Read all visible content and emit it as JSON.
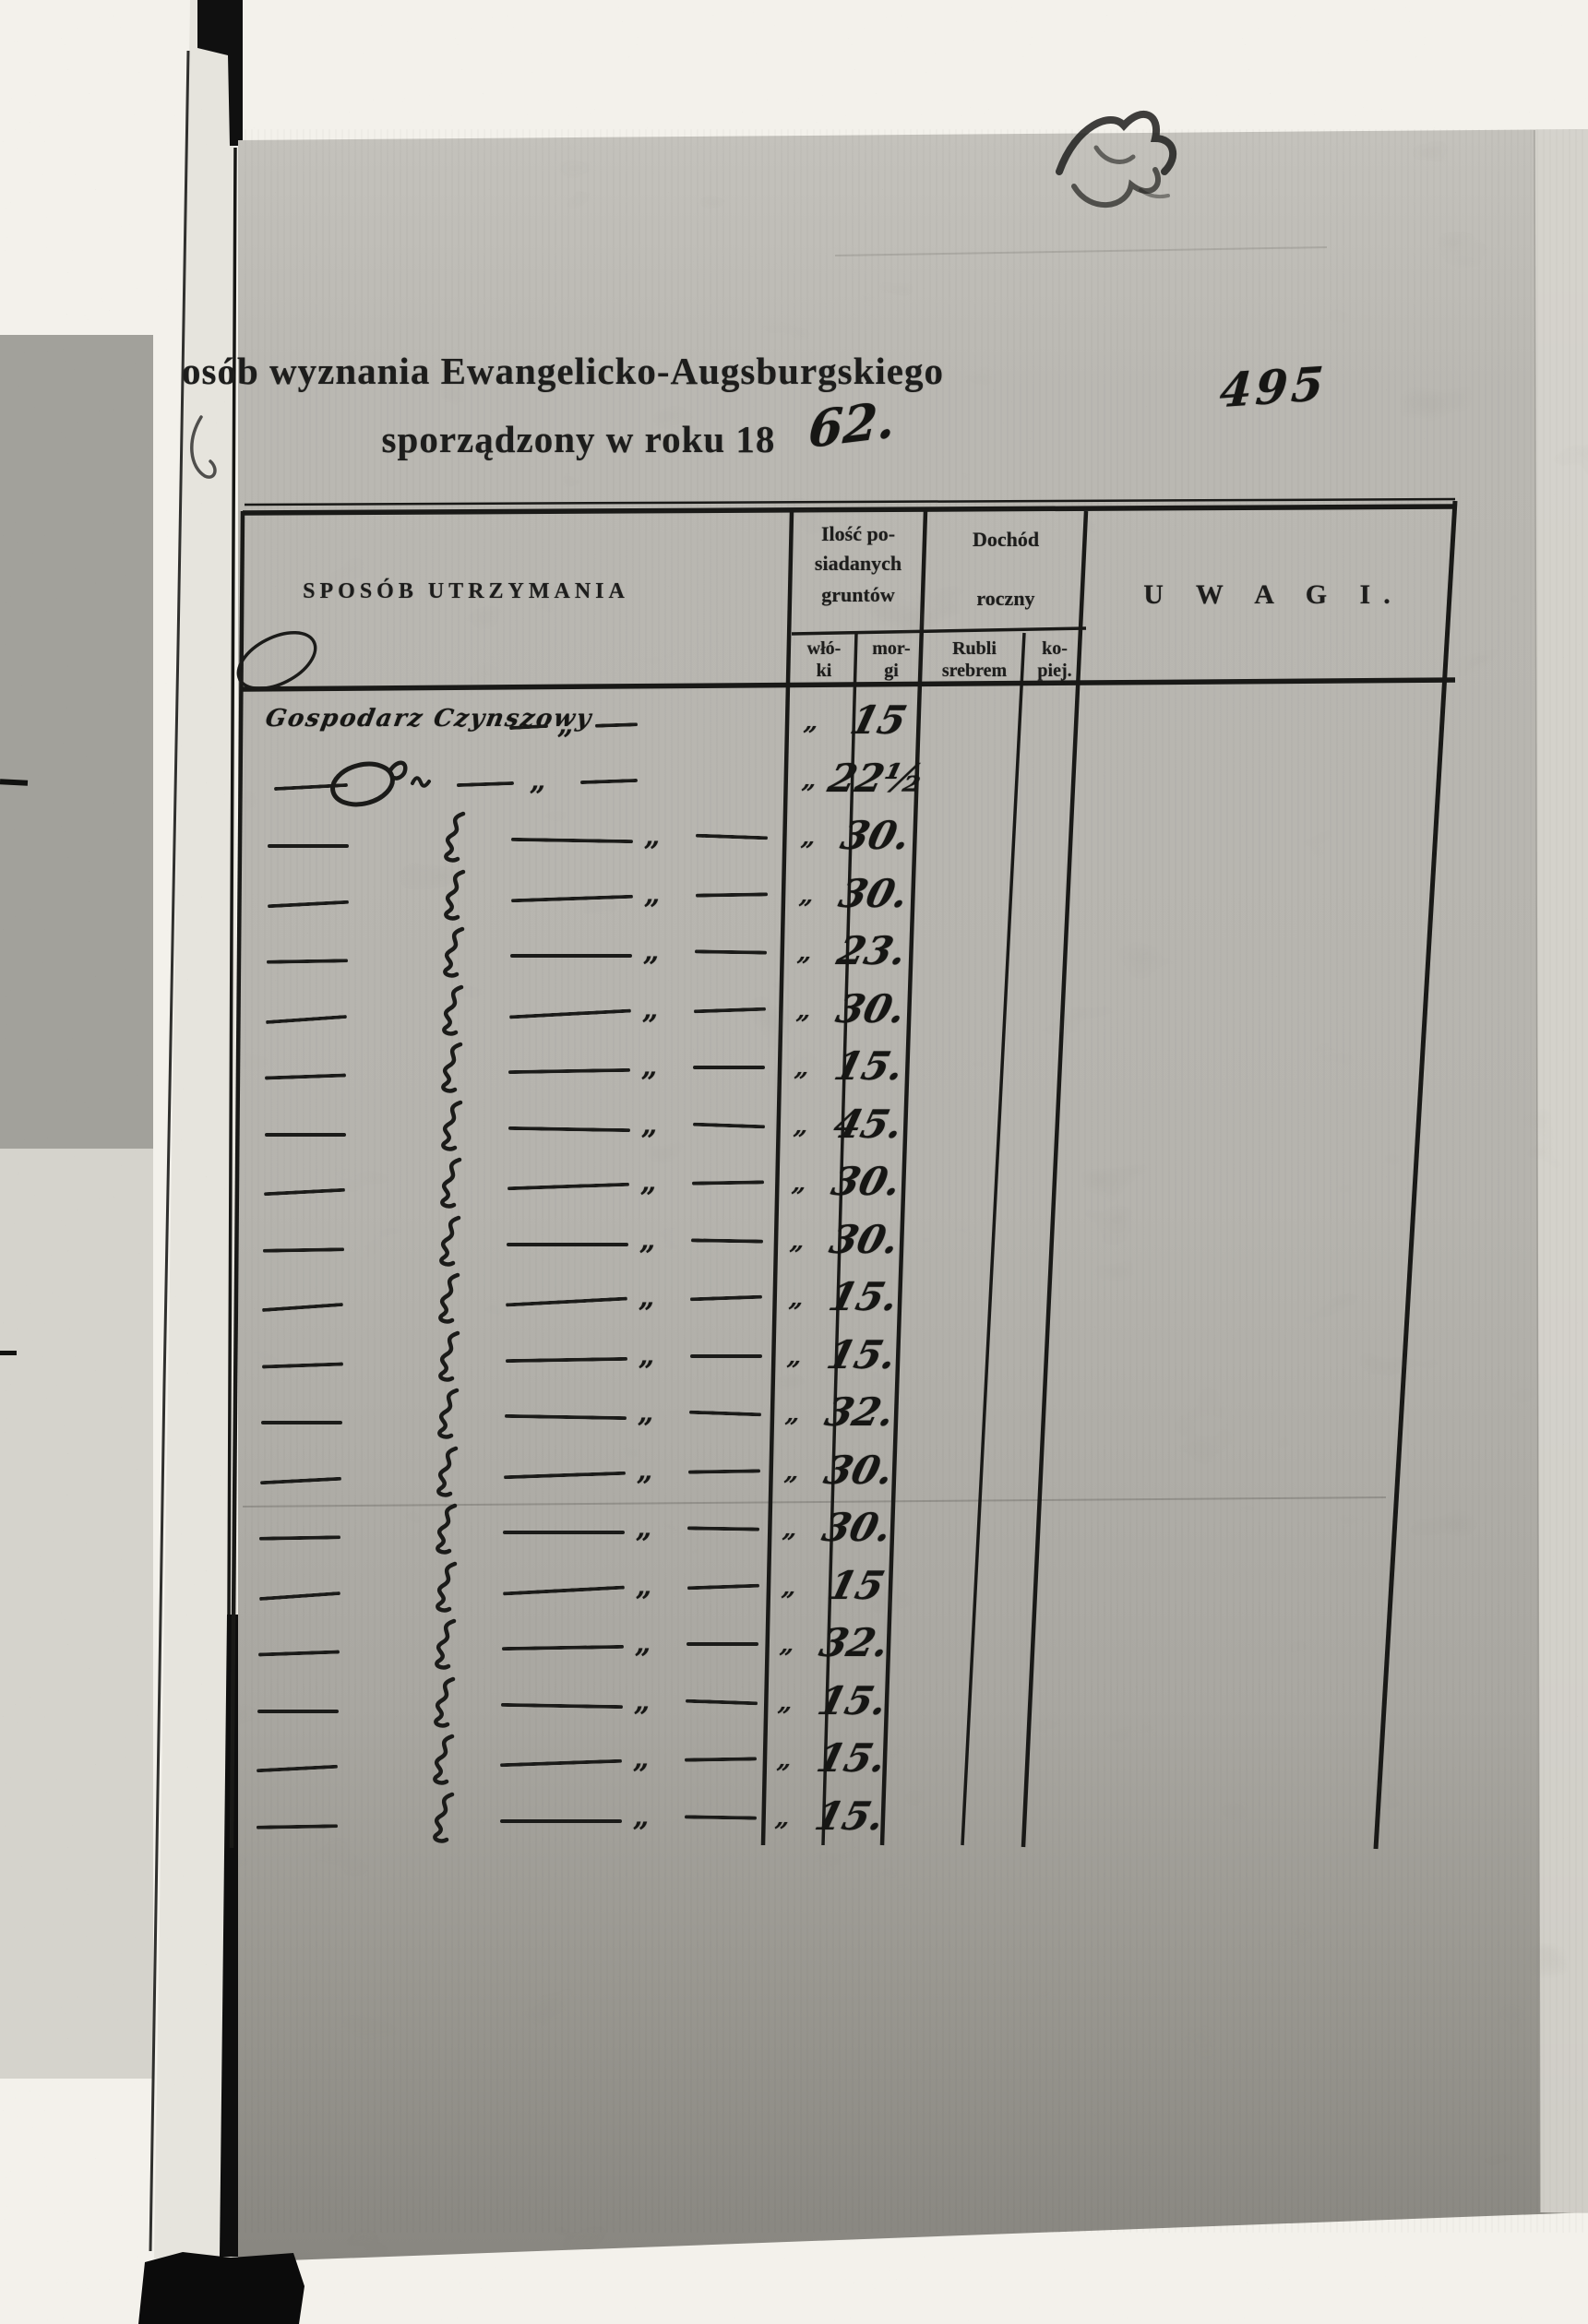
{
  "colors": {
    "ink": "#1a1a19",
    "paper": "#bcbab4",
    "background": "#f3f1eb",
    "handwriting": "#161614"
  },
  "stamp_number": "495",
  "title": {
    "line1": "osób wyznania Ewangelicko-Augsburgskiego",
    "line2_printed": "sporządzony w roku 18",
    "year_handwritten": "62."
  },
  "table": {
    "col_sposob": "SPOSÓB UTRZYMANIA",
    "col_grunty": {
      "line1": "Ilość po-",
      "line2": "siadanych",
      "line3": "gruntów"
    },
    "col_dochod": {
      "line1": "Dochód",
      "line2": "roczny"
    },
    "sub_wloki": {
      "line1": "włó-",
      "line2": "ki"
    },
    "sub_morgi": {
      "line1": "mor-",
      "line2": "gi"
    },
    "sub_rubli": {
      "line1": "Rubli",
      "line2": "srebrem"
    },
    "sub_kopiejki": {
      "line1": "ko-",
      "line2": "piej."
    },
    "col_uwagi": "U W A G I.",
    "ditto_mark": "„",
    "rows": [
      {
        "sposob": "Gospodarz Czynszowy",
        "kind": "text",
        "wloki": "„",
        "morgi": "15",
        "rubli": "",
        "kopiejki": "",
        "uwagi": ""
      },
      {
        "sposob": "Do",
        "kind": "ditto-large",
        "wloki": "„",
        "morgi": "22½",
        "rubli": "",
        "kopiejki": "",
        "uwagi": ""
      },
      {
        "sposob": "do",
        "kind": "ditto",
        "wloki": "„",
        "morgi": "30.",
        "rubli": "",
        "kopiejki": "",
        "uwagi": ""
      },
      {
        "sposob": "do",
        "kind": "ditto",
        "wloki": "„",
        "morgi": "30.",
        "rubli": "",
        "kopiejki": "",
        "uwagi": ""
      },
      {
        "sposob": "do",
        "kind": "ditto",
        "wloki": "„",
        "morgi": "23.",
        "rubli": "",
        "kopiejki": "",
        "uwagi": ""
      },
      {
        "sposob": "do",
        "kind": "ditto",
        "wloki": "„",
        "morgi": "30.",
        "rubli": "",
        "kopiejki": "",
        "uwagi": ""
      },
      {
        "sposob": "do",
        "kind": "ditto",
        "wloki": "„",
        "morgi": "15.",
        "rubli": "",
        "kopiejki": "",
        "uwagi": ""
      },
      {
        "sposob": "do",
        "kind": "ditto",
        "wloki": "„",
        "morgi": "45.",
        "rubli": "",
        "kopiejki": "",
        "uwagi": ""
      },
      {
        "sposob": "do",
        "kind": "ditto",
        "wloki": "„",
        "morgi": "30.",
        "rubli": "",
        "kopiejki": "",
        "uwagi": ""
      },
      {
        "sposob": "do",
        "kind": "ditto",
        "wloki": "„",
        "morgi": "30.",
        "rubli": "",
        "kopiejki": "",
        "uwagi": ""
      },
      {
        "sposob": "do",
        "kind": "ditto",
        "wloki": "„",
        "morgi": "15.",
        "rubli": "",
        "kopiejki": "",
        "uwagi": ""
      },
      {
        "sposob": "do",
        "kind": "ditto",
        "wloki": "„",
        "morgi": "15.",
        "rubli": "",
        "kopiejki": "",
        "uwagi": ""
      },
      {
        "sposob": "do",
        "kind": "ditto",
        "wloki": "„",
        "morgi": "32.",
        "rubli": "",
        "kopiejki": "",
        "uwagi": ""
      },
      {
        "sposob": "do",
        "kind": "ditto",
        "wloki": "„",
        "morgi": "30.",
        "rubli": "",
        "kopiejki": "",
        "uwagi": ""
      },
      {
        "sposob": "do",
        "kind": "ditto",
        "wloki": "„",
        "morgi": "30.",
        "rubli": "",
        "kopiejki": "",
        "uwagi": ""
      },
      {
        "sposob": "do",
        "kind": "ditto",
        "wloki": "„",
        "morgi": "15",
        "rubli": "",
        "kopiejki": "",
        "uwagi": ""
      },
      {
        "sposob": "do",
        "kind": "ditto",
        "wloki": "„",
        "morgi": "32.",
        "rubli": "",
        "kopiejki": "",
        "uwagi": ""
      },
      {
        "sposob": "do",
        "kind": "ditto",
        "wloki": "„",
        "morgi": "15.",
        "rubli": "",
        "kopiejki": "",
        "uwagi": ""
      },
      {
        "sposob": "do",
        "kind": "ditto",
        "wloki": "„",
        "morgi": "15.",
        "rubli": "",
        "kopiejki": "",
        "uwagi": ""
      },
      {
        "sposob": "do",
        "kind": "ditto",
        "wloki": "„",
        "morgi": "15.",
        "rubli": "",
        "kopiejki": "",
        "uwagi": ""
      }
    ]
  }
}
